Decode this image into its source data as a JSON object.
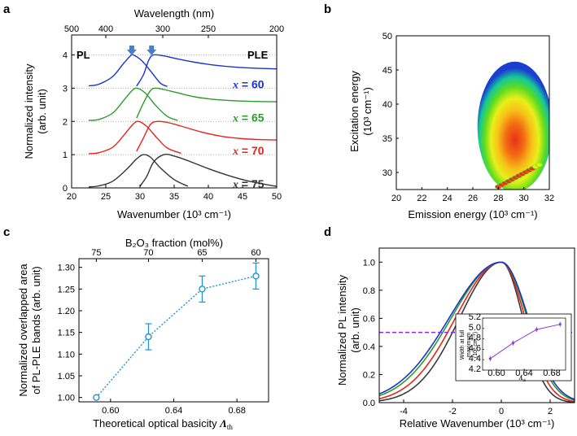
{
  "panels": {
    "a": "a",
    "b": "b",
    "c": "c",
    "d": "d"
  },
  "chart_data": [
    {
      "id": "a",
      "type": "line",
      "xlabel": "Wavenumber (10³ cm⁻¹)",
      "top_xlabel": "Wavelength (nm)",
      "ylabel": "Normalized intensity",
      "ylabel2": "(arb. unit)",
      "xlim": [
        20,
        50
      ],
      "ylim": [
        0,
        4.6
      ],
      "xticks": [
        "20",
        "25",
        "30",
        "35",
        "40",
        "45",
        "50"
      ],
      "yticks": [
        "0",
        "1",
        "2",
        "3",
        "4"
      ],
      "top_ticks": [
        {
          "nm": 500,
          "label": "500"
        },
        {
          "nm": 400,
          "label": "400"
        },
        {
          "nm": 300,
          "label": "300"
        },
        {
          "nm": 250,
          "label": "250"
        },
        {
          "nm": 200,
          "label": "200"
        }
      ],
      "left_label": "PL",
      "right_label": "PLE",
      "arrows_x": [
        28.8,
        31.7
      ],
      "series": [
        {
          "name": "x = 75",
          "x_prefix": "x",
          "value_text": " = 75",
          "offset": 0,
          "color": "#333333",
          "pl": [
            [
              22.5,
              0.03
            ],
            [
              24,
              0.06
            ],
            [
              26,
              0.2
            ],
            [
              28,
              0.55
            ],
            [
              29.5,
              0.87
            ],
            [
              30.5,
              1.0
            ],
            [
              31.5,
              0.93
            ],
            [
              33,
              0.6
            ],
            [
              35,
              0.25
            ],
            [
              37,
              0.05
            ]
          ],
          "ple": [
            [
              30,
              0.05
            ],
            [
              31,
              0.35
            ],
            [
              32,
              0.78
            ],
            [
              33.5,
              1.0
            ],
            [
              35,
              0.96
            ],
            [
              37,
              0.82
            ],
            [
              40,
              0.58
            ],
            [
              43,
              0.37
            ],
            [
              46,
              0.2
            ],
            [
              49,
              0.08
            ],
            [
              50,
              0.05
            ]
          ]
        },
        {
          "name": "x = 70",
          "x_prefix": "x",
          "value_text": " = 70",
          "offset": 1,
          "color": "#e8231f",
          "pl": [
            [
              22.5,
              0.03
            ],
            [
              24,
              0.06
            ],
            [
              26,
              0.22
            ],
            [
              27.5,
              0.55
            ],
            [
              29,
              0.92
            ],
            [
              29.8,
              1.0
            ],
            [
              31,
              0.85
            ],
            [
              32.5,
              0.5
            ],
            [
              34,
              0.2
            ],
            [
              36,
              0.04
            ]
          ],
          "ple": [
            [
              29.5,
              0.1
            ],
            [
              30.5,
              0.5
            ],
            [
              31.5,
              0.9
            ],
            [
              32.5,
              1.0
            ],
            [
              34,
              0.97
            ],
            [
              36,
              0.86
            ],
            [
              39,
              0.68
            ],
            [
              42,
              0.55
            ],
            [
              45,
              0.48
            ],
            [
              48,
              0.45
            ],
            [
              50,
              0.44
            ]
          ]
        },
        {
          "name": "x = 65",
          "x_prefix": "x",
          "value_text": " = 65",
          "offset": 2,
          "color": "#2d9a2d",
          "pl": [
            [
              22.5,
              0.03
            ],
            [
              24,
              0.06
            ],
            [
              26,
              0.25
            ],
            [
              27.5,
              0.6
            ],
            [
              28.8,
              0.92
            ],
            [
              29.6,
              1.0
            ],
            [
              30.8,
              0.85
            ],
            [
              32.3,
              0.48
            ],
            [
              34,
              0.15
            ],
            [
              35.5,
              0.03
            ]
          ],
          "ple": [
            [
              29.5,
              0.1
            ],
            [
              30.5,
              0.55
            ],
            [
              31.5,
              0.92
            ],
            [
              32.2,
              1.0
            ],
            [
              33.5,
              0.96
            ],
            [
              35.5,
              0.86
            ],
            [
              38,
              0.74
            ],
            [
              41,
              0.66
            ],
            [
              44,
              0.62
            ],
            [
              47,
              0.6
            ],
            [
              50,
              0.59
            ]
          ]
        },
        {
          "name": "x = 60",
          "x_prefix": "x",
          "value_text": " = 60",
          "offset": 3,
          "color": "#1a34c8",
          "pl": [
            [
              22.5,
              0.07
            ],
            [
              24,
              0.12
            ],
            [
              26,
              0.35
            ],
            [
              27.5,
              0.72
            ],
            [
              28.6,
              0.97
            ],
            [
              29,
              1.0
            ],
            [
              30.3,
              0.82
            ],
            [
              31.8,
              0.45
            ],
            [
              33,
              0.15
            ],
            [
              34,
              0.05
            ]
          ],
          "ple": [
            [
              29.5,
              0.06
            ],
            [
              30.5,
              0.4
            ],
            [
              31.3,
              0.85
            ],
            [
              32,
              1.0
            ],
            [
              33.5,
              0.97
            ],
            [
              35.5,
              0.88
            ],
            [
              38,
              0.78
            ],
            [
              41,
              0.69
            ],
            [
              44,
              0.63
            ],
            [
              47,
              0.6
            ],
            [
              50,
              0.58
            ]
          ]
        }
      ]
    },
    {
      "id": "b",
      "type": "heatmap",
      "xlabel": "Emission energy (10³ cm⁻¹)",
      "ylabel": "Excitation energy",
      "ylabel2": "(10³ cm⁻¹)",
      "xlim": [
        20,
        32
      ],
      "ylim": [
        27.5,
        50
      ],
      "xticks": [
        "20",
        "22",
        "24",
        "26",
        "28",
        "30",
        "32"
      ],
      "yticks": [
        "30",
        "35",
        "40",
        "45",
        "50"
      ],
      "peak": {
        "x": 29.3,
        "y": 35.5
      },
      "scatter_line": [
        [
          28.0,
          27.9
        ],
        [
          31.2,
          31.1
        ]
      ]
    },
    {
      "id": "c",
      "type": "scatter",
      "xlabel": "Theoretical optical basicity",
      "xlabel_sym": "Λ",
      "xlabel_sub": "th",
      "top_xlabel": "B₂O₃ fraction (mol%)",
      "ylabel": "Normalized overlapped area",
      "ylabel2": "of PL-PLE bands (arb. unit)",
      "xlim": [
        0.58,
        0.7
      ],
      "ylim": [
        0.99,
        1.32
      ],
      "xticks": [
        "0.60",
        "0.64",
        "0.68"
      ],
      "yticks": [
        "1.00",
        "1.05",
        "1.10",
        "1.15",
        "1.20",
        "1.25",
        "1.30"
      ],
      "top_ticks": [
        {
          "x": 0.591,
          "label": "75"
        },
        {
          "x": 0.624,
          "label": "70"
        },
        {
          "x": 0.658,
          "label": "65"
        },
        {
          "x": 0.692,
          "label": "60"
        }
      ],
      "x": [
        0.591,
        0.624,
        0.658,
        0.692
      ],
      "values": [
        1.0,
        1.14,
        1.25,
        1.28
      ],
      "errors": [
        0.0,
        0.03,
        0.03,
        0.03
      ],
      "color": "#1a93d2"
    },
    {
      "id": "d",
      "type": "line",
      "xlabel": "Relative Wavenumber (10³ cm⁻¹)",
      "ylabel": "Normalized PL intensity",
      "ylabel2": "(arb. unit)",
      "xlim": [
        -5,
        3
      ],
      "ylim": [
        0,
        1.1
      ],
      "xticks": [
        "-4",
        "-2",
        "0",
        "2"
      ],
      "yticks": [
        "0.0",
        "0.2",
        "0.4",
        "0.6",
        "0.8",
        "1.0"
      ],
      "half_max": 0.5,
      "series": [
        {
          "name": "x = 75",
          "color": "#3a3a3a",
          "width": 4.0
        },
        {
          "name": "x = 70",
          "color": "#e8231f",
          "width": 4.4
        },
        {
          "name": "x = 65",
          "color": "#2d9a2d",
          "width": 4.8
        },
        {
          "name": "x = 60",
          "color": "#1a34c8",
          "width": 5.0
        }
      ],
      "inset": {
        "ylabel": "Width at full",
        "ylabel2": "maximum",
        "ylabel3": "(10³ cm⁻¹)",
        "xlabel_sym": "Λ",
        "xlabel_sub": "th",
        "xlim": [
          0.58,
          0.7
        ],
        "ylim": [
          4.2,
          5.2
        ],
        "xticks": [
          "0.60",
          "0.64",
          "0.68"
        ],
        "yticks": [
          "4.2",
          "4.4",
          "4.6",
          "4.8",
          "5.0",
          "5.2"
        ],
        "x": [
          0.591,
          0.624,
          0.658,
          0.692
        ],
        "values": [
          4.42,
          4.72,
          4.98,
          5.08
        ],
        "errors": [
          0.05,
          0.05,
          0.05,
          0.05
        ],
        "color": "#8a3ad8"
      }
    }
  ]
}
